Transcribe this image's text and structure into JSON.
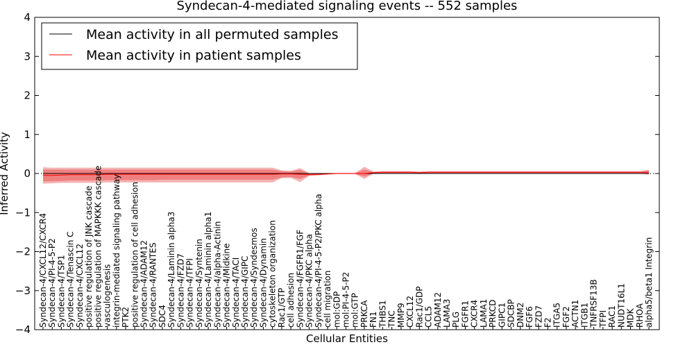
{
  "chart_data": {
    "type": "line",
    "title": "Syndecan-4-mediated signaling events -- 552 samples",
    "xlabel": "Cellular Entities",
    "ylabel": "Inferred Activity",
    "ylim": [
      -4,
      4
    ],
    "yticks": [
      -4,
      -3,
      -2,
      -1,
      0,
      1,
      2,
      3,
      4
    ],
    "legend_position": "top-left",
    "categories": [
      "Syndecan-4/CXCL12/CXCR4",
      "Syndecan-4/PI-4-5-P2",
      "Syndecan-4/TSP1",
      "Syndecan-4/Tenascin C",
      "Syndecan-4/CXCL12",
      "positive regulation of JNK cascade",
      "positive regulation of MAPKKK cascade",
      "vasculogenesis",
      "integrin-mediated signaling pathway",
      "PTK2",
      "positive regulation of cell adhesion",
      "Syndecan-4/ADAM12",
      "Syndecan-4/RANTES",
      "SDC4",
      "Syndecan-4/Laminin alpha3",
      "Syndecan-4/FZD7",
      "Syndecan-4/TFPI",
      "Syndecan-4/Syntenin",
      "Syndecan-4/Laminin alpha1",
      "Syndecan-4/alpha-Actinin",
      "Syndecan-4/Midkine",
      "Syndecan-4/TACI",
      "Syndecan-4/GIPC",
      "Syndecan-4/Syndesmos",
      "Syndecan-4/Dynamin",
      "cytoskeleton organization",
      "Rac1/GTP",
      "cell adhesion",
      "Syndecan-4/FGFR1/FGF",
      "Syndecan-4/PKC alpha",
      "Syndecan-4/PI-4-5-P2/PKC alpha",
      "cell migration",
      "mol:GDP",
      "mol:PI-4-5-P2",
      "mol:GTP",
      "PRKCA",
      "FN1",
      "THBS1",
      "TNC",
      "MMP9",
      "CXCL12",
      "Rac1/GDP",
      "CCL5",
      "ADAM12",
      "LAMA3",
      "PLG",
      "FGFR1",
      "CXCR4",
      "LAMA1",
      "PRKCD",
      "GIPC1",
      "SDCBP",
      "DNM2",
      "FGF6",
      "FZD7",
      "F2",
      "ITGA5",
      "FGF2",
      "ACTN1",
      "ITGB1",
      "TNFRSF13B",
      "TFPI",
      "RAC1",
      "NUDT16L1",
      "MDK",
      "RHOA",
      "alpha5/beta1 Integrin"
    ],
    "series": [
      {
        "name": "Mean activity in all permuted samples",
        "color": "#000000",
        "values": [
          0.0,
          0.0,
          0.0,
          0.0,
          0.0,
          0.0,
          0.0,
          0.0,
          0.0,
          0.0,
          0.0,
          0.0,
          0.0,
          0.0,
          0.0,
          0.0,
          0.0,
          0.0,
          0.0,
          0.0,
          0.0,
          0.0,
          0.0,
          0.0,
          0.0,
          0.0,
          0.0,
          0.0,
          0.0,
          0.0,
          0.0,
          0.0,
          0.0,
          0.0,
          0.0,
          0.0,
          0.0,
          0.0,
          0.0,
          0.0,
          0.0,
          0.0,
          0.0,
          0.0,
          0.0,
          0.0,
          0.0,
          0.0,
          0.0,
          0.0,
          0.0,
          0.0,
          0.0,
          0.0,
          0.0,
          0.0,
          0.0,
          0.0,
          0.0,
          0.0,
          0.0,
          0.0,
          0.0,
          0.0,
          0.0,
          0.0,
          0.0
        ]
      },
      {
        "name": "Mean activity in patient samples",
        "color": "#ff0000",
        "values": [
          -0.05,
          -0.05,
          -0.04,
          -0.03,
          -0.03,
          -0.03,
          -0.03,
          -0.02,
          -0.02,
          -0.02,
          -0.02,
          -0.02,
          -0.02,
          -0.02,
          -0.02,
          -0.02,
          -0.02,
          -0.02,
          -0.02,
          -0.02,
          -0.02,
          -0.02,
          -0.02,
          -0.02,
          -0.02,
          -0.02,
          -0.01,
          -0.01,
          -0.02,
          -0.03,
          -0.02,
          -0.01,
          0.0,
          0.0,
          0.0,
          0.0,
          0.02,
          0.03,
          0.03,
          0.03,
          0.03,
          0.02,
          0.03,
          0.03,
          0.03,
          0.03,
          0.03,
          0.03,
          0.03,
          0.03,
          0.03,
          0.03,
          0.03,
          0.03,
          0.03,
          0.03,
          0.03,
          0.03,
          0.03,
          0.03,
          0.03,
          0.03,
          0.03,
          0.03,
          0.03,
          0.03,
          0.03
        ]
      }
    ],
    "band_inner": {
      "color": "#f08080",
      "upper": [
        0.1,
        0.1,
        0.1,
        0.1,
        0.1,
        0.1,
        0.1,
        0.1,
        0.1,
        0.1,
        0.1,
        0.1,
        0.1,
        0.1,
        0.1,
        0.1,
        0.1,
        0.1,
        0.1,
        0.1,
        0.1,
        0.1,
        0.1,
        0.1,
        0.1,
        0.1,
        0.06,
        0.05,
        0.09,
        0.0,
        -0.01,
        0.0,
        0.01,
        0.01,
        0.01,
        0.1,
        0.04,
        0.05,
        0.05,
        0.05,
        0.05,
        0.04,
        0.05,
        0.05,
        0.05,
        0.05,
        0.05,
        0.05,
        0.05,
        0.05,
        0.05,
        0.05,
        0.05,
        0.05,
        0.05,
        0.05,
        0.05,
        0.05,
        0.05,
        0.05,
        0.05,
        0.05,
        0.05,
        0.05,
        0.05,
        0.05,
        0.07
      ],
      "lower": [
        -0.2,
        -0.2,
        -0.19,
        -0.18,
        -0.18,
        -0.18,
        -0.18,
        -0.17,
        -0.17,
        -0.17,
        -0.17,
        -0.17,
        -0.17,
        -0.16,
        -0.16,
        -0.16,
        -0.16,
        -0.16,
        -0.16,
        -0.16,
        -0.16,
        -0.16,
        -0.16,
        -0.16,
        -0.16,
        -0.16,
        -0.1,
        -0.09,
        -0.14,
        -0.05,
        -0.04,
        -0.02,
        -0.01,
        -0.01,
        -0.01,
        -0.08,
        0.0,
        0.01,
        0.01,
        0.01,
        0.01,
        0.0,
        0.01,
        0.01,
        0.01,
        0.01,
        0.01,
        0.01,
        0.01,
        0.01,
        0.01,
        0.01,
        0.01,
        0.01,
        0.01,
        0.01,
        0.01,
        0.01,
        0.01,
        0.01,
        0.01,
        0.01,
        0.01,
        0.01,
        0.01,
        0.01,
        0.0
      ]
    },
    "band_outer": {
      "color": "#f4b4b4",
      "upper": [
        0.16,
        0.15,
        0.15,
        0.15,
        0.15,
        0.15,
        0.15,
        0.15,
        0.15,
        0.15,
        0.15,
        0.15,
        0.15,
        0.15,
        0.15,
        0.15,
        0.15,
        0.15,
        0.15,
        0.15,
        0.15,
        0.15,
        0.15,
        0.15,
        0.15,
        0.15,
        0.08,
        0.07,
        0.14,
        0.01,
        0.0,
        0.0,
        0.01,
        0.01,
        0.01,
        0.17,
        0.05,
        0.06,
        0.06,
        0.06,
        0.06,
        0.05,
        0.06,
        0.06,
        0.06,
        0.06,
        0.06,
        0.06,
        0.06,
        0.06,
        0.06,
        0.06,
        0.06,
        0.06,
        0.06,
        0.06,
        0.06,
        0.06,
        0.06,
        0.06,
        0.06,
        0.06,
        0.06,
        0.06,
        0.06,
        0.06,
        0.1
      ],
      "lower": [
        -0.26,
        -0.25,
        -0.24,
        -0.24,
        -0.24,
        -0.24,
        -0.24,
        -0.23,
        -0.23,
        -0.23,
        -0.23,
        -0.23,
        -0.23,
        -0.23,
        -0.23,
        -0.23,
        -0.23,
        -0.23,
        -0.23,
        -0.23,
        -0.23,
        -0.23,
        -0.23,
        -0.23,
        -0.23,
        -0.23,
        -0.12,
        -0.11,
        -0.22,
        -0.06,
        -0.05,
        -0.03,
        -0.01,
        -0.01,
        -0.01,
        -0.14,
        0.0,
        0.0,
        0.0,
        0.0,
        0.0,
        0.0,
        0.0,
        0.0,
        0.0,
        0.0,
        0.0,
        0.0,
        0.0,
        0.0,
        0.0,
        0.0,
        0.0,
        0.0,
        0.0,
        0.0,
        0.0,
        0.0,
        0.0,
        0.0,
        0.0,
        0.0,
        0.0,
        0.0,
        0.0,
        0.0,
        -0.03
      ]
    }
  }
}
